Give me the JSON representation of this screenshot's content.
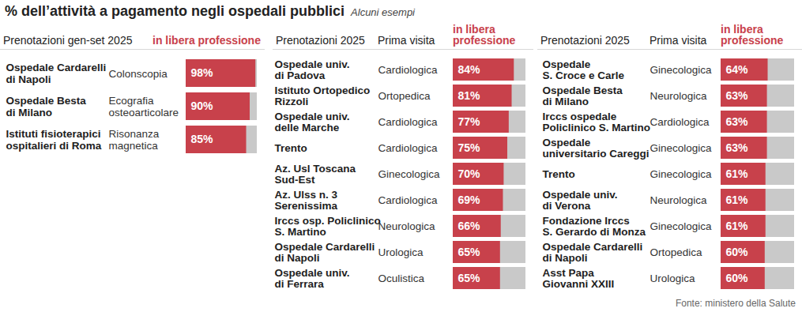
{
  "title": "% dell’attività a pagamento negli ospedali pubblici",
  "subtitle": "Alcuni esempi",
  "source": "Fonte: ministero della Salute",
  "chart_data": [
    {
      "type": "bar",
      "orientation": "horizontal",
      "category_header": "Prenotazioni gen-set 2025",
      "value_header": "in libera professione",
      "categories": [
        "Ospedale Cardarelli\ndi Napoli",
        "Ospedale Besta\ndi Milano",
        "Istituti fisioterapici\nospitalieri di Roma"
      ],
      "exams": [
        "Colonscopia",
        "Ecografia\nosteoarticolare",
        "Risonanza\nmagnetica"
      ],
      "values": [
        98,
        90,
        85
      ],
      "value_labels": [
        "98%",
        "90%",
        "85%"
      ],
      "xlim": [
        0,
        100
      ],
      "tick_labels": false,
      "data_labels": true,
      "color": "#c8414b"
    },
    {
      "type": "bar",
      "orientation": "horizontal",
      "category_header": "Prenotazioni 2025",
      "exam_header": "Prima visita",
      "value_header": "in libera\nprofessione",
      "categories": [
        "Ospedale univ.\ndi Padova",
        "Istituto Ortopedico\nRizzoli",
        "Ospedale univ.\ndelle Marche",
        "Trento",
        "Az. Usl Toscana\nSud-Est",
        "Az. Ulss n. 3\nSerenissima",
        "Irccs osp. Policlinico\nS. Martino",
        "Ospedale Cardarelli\ndi Napoli",
        "Ospedale univ.\ndi Ferrara"
      ],
      "exams": [
        "Cardiologica",
        "Ortopedica",
        "Cardiologica",
        "Cardiologica",
        "Ginecologica",
        "Cardiologica",
        "Neurologica",
        "Urologica",
        "Oculistica"
      ],
      "values": [
        84,
        81,
        77,
        75,
        70,
        69,
        66,
        65,
        65
      ],
      "value_labels": [
        "84%",
        "81%",
        "77%",
        "75%",
        "70%",
        "69%",
        "66%",
        "65%",
        "65%"
      ],
      "xlim": [
        0,
        100
      ],
      "tick_labels": false,
      "data_labels": true,
      "color": "#c8414b"
    },
    {
      "type": "bar",
      "orientation": "horizontal",
      "category_header": "Prenotazioni 2025",
      "exam_header": "Prima visita",
      "value_header": "in libera\nprofessione",
      "categories": [
        "Ospedale\nS. Croce e Carle",
        "Ospedale Besta\ndi Milano",
        "Irccs ospedale\nPoliclinico S. Martino",
        "Ospedale\nuniversitario Careggi",
        "Trento",
        "Ospedale univ.\ndi Verona",
        "Fondazione Irccs\nS. Gerardo di Monza",
        "Ospedale Cardarelli\ndi Napoli",
        "Asst Papa\nGiovanni XXIII"
      ],
      "exams": [
        "Ginecologica",
        "Neurologica",
        "Cardiologica",
        "Ginecologica",
        "Ginecologica",
        "Neurologica",
        "Ginecologica",
        "Ortopedica",
        "Urologica"
      ],
      "values": [
        64,
        63,
        63,
        63,
        61,
        61,
        61,
        60,
        60
      ],
      "value_labels": [
        "64%",
        "63%",
        "63%",
        "63%",
        "61%",
        "61%",
        "61%",
        "60%",
        "60%"
      ],
      "xlim": [
        0,
        100
      ],
      "tick_labels": false,
      "data_labels": true,
      "color": "#c8414b"
    }
  ]
}
